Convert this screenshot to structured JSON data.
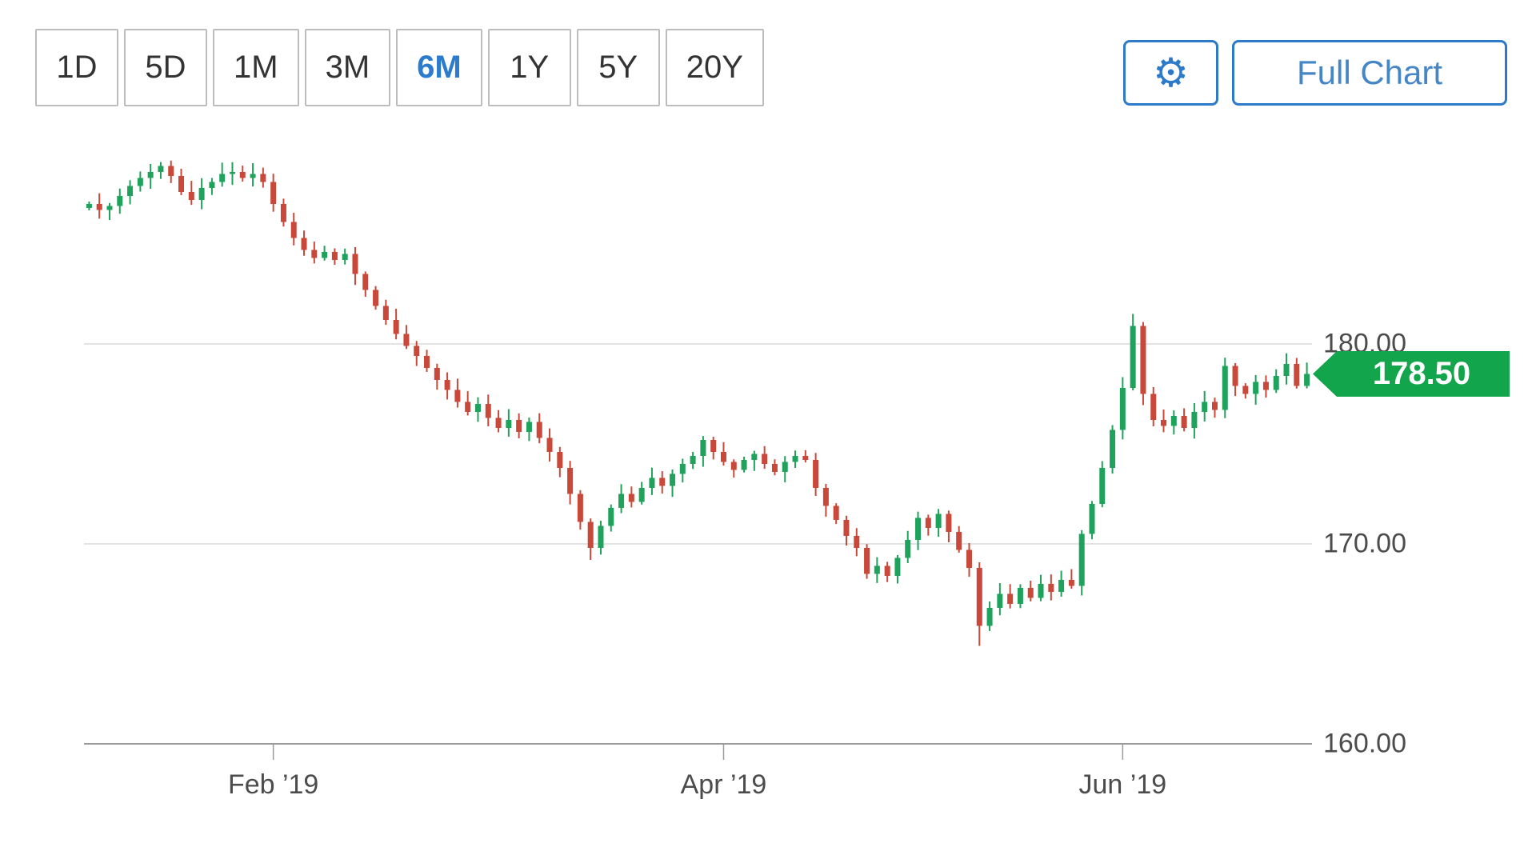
{
  "toolbar": {
    "ranges": [
      {
        "label": "1D",
        "selected": false
      },
      {
        "label": "5D",
        "selected": false
      },
      {
        "label": "1M",
        "selected": false
      },
      {
        "label": "3M",
        "selected": false
      },
      {
        "label": "6M",
        "selected": true
      },
      {
        "label": "1Y",
        "selected": false
      },
      {
        "label": "5Y",
        "selected": false
      },
      {
        "label": "20Y",
        "selected": false
      }
    ],
    "settings_icon": "gear-icon",
    "settings_glyph": "⚙",
    "full_chart_label": "Full Chart"
  },
  "colors": {
    "accent_blue": "#2d7ac9",
    "selected_range_blue": "#2b7ccc",
    "candle_up": "#1fa25c",
    "candle_down": "#c9483a",
    "badge_green": "#12a54b",
    "gridline": "#dadada",
    "axis_line": "#9b9b9b",
    "axis_text": "#4c4c4c"
  },
  "chart_data": {
    "type": "candlestick",
    "title": "6-month daily price chart",
    "legend": "none",
    "grid": "horizontal",
    "last_price": "178.50",
    "ylim": [
      160,
      191.2
    ],
    "y_ticks": [
      {
        "label": "180.00",
        "value": 180
      },
      {
        "label": "170.00",
        "value": 170
      },
      {
        "label": "160.00",
        "value": 160
      }
    ],
    "x_ticks": [
      {
        "label": "Feb ’19",
        "day": 18
      },
      {
        "label": "Apr ’19",
        "day": 62
      },
      {
        "label": "Jun ’19",
        "day": 101
      }
    ],
    "first_open": 186.8,
    "closes": [
      187.0,
      186.7,
      186.9,
      187.4,
      187.9,
      188.3,
      188.6,
      188.9,
      188.4,
      187.6,
      187.2,
      187.8,
      188.1,
      188.5,
      188.6,
      188.3,
      188.5,
      188.1,
      187.0,
      186.1,
      185.3,
      184.7,
      184.3,
      184.6,
      184.2,
      184.5,
      183.5,
      182.7,
      181.9,
      181.2,
      180.5,
      179.9,
      179.4,
      178.8,
      178.2,
      177.7,
      177.1,
      176.6,
      177.0,
      176.3,
      175.8,
      176.2,
      175.6,
      176.1,
      175.3,
      174.6,
      173.8,
      172.5,
      171.1,
      169.8,
      170.9,
      171.8,
      172.5,
      172.1,
      172.8,
      173.3,
      172.9,
      173.5,
      174.0,
      174.4,
      175.2,
      174.6,
      174.1,
      173.7,
      174.2,
      174.5,
      174.0,
      173.6,
      174.1,
      174.4,
      174.2,
      172.8,
      171.9,
      171.2,
      170.4,
      169.8,
      168.5,
      168.9,
      168.4,
      169.3,
      170.2,
      171.3,
      170.8,
      171.5,
      170.6,
      169.7,
      168.8,
      165.9,
      166.8,
      167.5,
      167.0,
      167.8,
      167.3,
      168.0,
      167.6,
      168.2,
      167.9,
      170.5,
      172.0,
      173.8,
      175.7,
      177.8,
      180.9,
      177.5,
      176.2,
      175.9,
      176.4,
      175.8,
      176.6,
      177.1,
      176.7,
      178.9,
      177.9,
      177.5,
      178.1,
      177.7,
      178.4,
      179.0,
      177.9,
      178.5
    ],
    "wick_overrides": {
      "49": {
        "low": 169.2
      },
      "87": {
        "low": 164.9
      },
      "102": {
        "high": 181.5
      }
    }
  }
}
